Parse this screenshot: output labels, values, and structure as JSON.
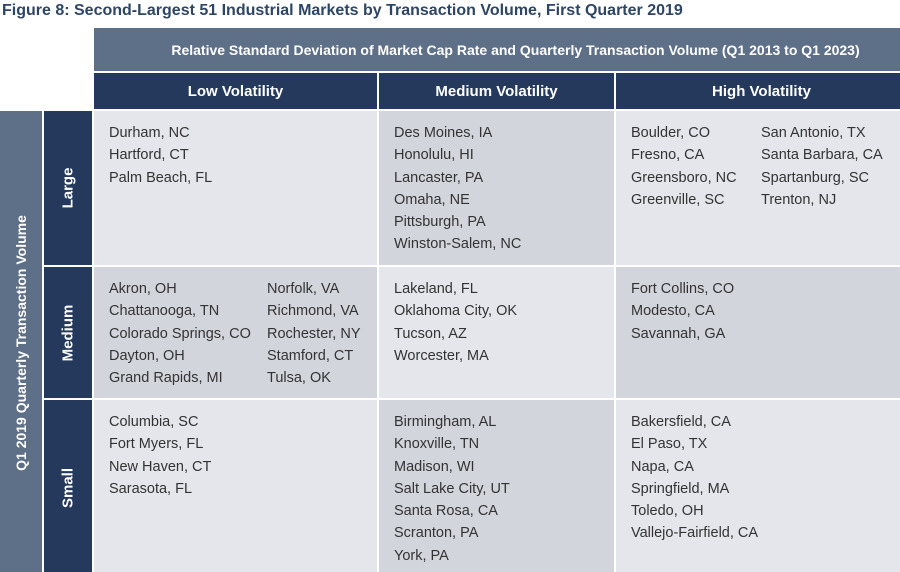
{
  "figure_title": "Figure 8: Second-Largest 51 Industrial Markets by Transaction Volume, First Quarter 2019",
  "header": {
    "top_label": "Relative Standard Deviation of Market Cap Rate and Quarterly Transaction Volume (Q1 2013 to Q1 2023)",
    "columns": [
      "Low Volatility",
      "Medium Volatility",
      "High Volatility"
    ]
  },
  "row_axis_label": "Q1 2019 Quarterly Transaction Volume",
  "rows": [
    {
      "label": "Large",
      "cells": [
        {
          "col1": [
            "Durham, NC",
            "Hartford, CT",
            "Palm Beach, FL"
          ],
          "col2": []
        },
        {
          "col1": [
            "Des Moines, IA",
            "Honolulu, HI",
            "Lancaster, PA",
            "Omaha, NE",
            "Pittsburgh, PA",
            "Winston-Salem, NC"
          ],
          "col2": []
        },
        {
          "col1": [
            "Boulder, CO",
            "Fresno, CA",
            "Greensboro, NC",
            "Greenville, SC"
          ],
          "col2": [
            "San Antonio, TX",
            "Santa Barbara, CA",
            "Spartanburg, SC",
            "Trenton, NJ"
          ]
        }
      ]
    },
    {
      "label": "Medium",
      "cells": [
        {
          "col1": [
            "Akron, OH",
            "Chattanooga, TN",
            "Colorado Springs, CO",
            "Dayton, OH",
            "Grand Rapids, MI"
          ],
          "col2": [
            "Norfolk, VA",
            "Richmond, VA",
            "Rochester, NY",
            "Stamford, CT",
            "Tulsa, OK"
          ]
        },
        {
          "col1": [
            "Lakeland, FL",
            "Oklahoma City, OK",
            "Tucson, AZ",
            "Worcester, MA"
          ],
          "col2": []
        },
        {
          "col1": [
            "Fort Collins, CO",
            "Modesto, CA",
            "Savannah, GA"
          ],
          "col2": []
        }
      ]
    },
    {
      "label": "Small",
      "cells": [
        {
          "col1": [
            "Columbia, SC",
            "Fort Myers, FL",
            "New Haven, CT",
            "Sarasota, FL"
          ],
          "col2": []
        },
        {
          "col1": [
            "Birmingham, AL",
            "Knoxville, TN",
            "Madison, WI",
            "Salt Lake City, UT",
            "Santa Rosa, CA",
            "Scranton, PA",
            "York, PA"
          ],
          "col2": []
        },
        {
          "col1": [
            "Bakersfield, CA",
            "El Paso, TX",
            "Napa, CA",
            "Springfield, MA",
            "Toledo, OH",
            "Vallejo-Fairfield, CA"
          ],
          "col2": []
        }
      ]
    }
  ],
  "colors": {
    "dark_navy": "#24395b",
    "slate": "#5e6f88",
    "cell_light": "#e5e6eb",
    "cell_mid": "#d3d5dc",
    "title": "#2e4565"
  }
}
